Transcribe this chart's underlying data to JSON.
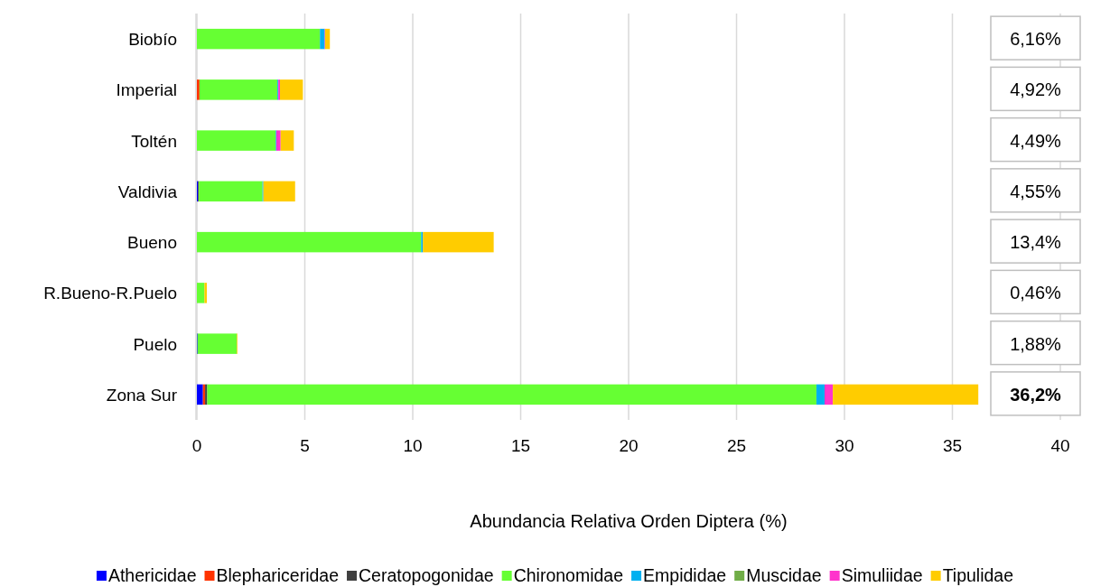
{
  "chart_data": {
    "type": "bar",
    "orientation": "horizontal",
    "stacked": true,
    "categories": [
      "Biobío",
      "Imperial",
      "Toltén",
      "Valdivia",
      "Bueno",
      "R.Bueno-R.Puelo",
      "Puelo",
      "Zona Sur"
    ],
    "series": [
      {
        "name": "Athericidae",
        "color": "#0000ff",
        "values": [
          0,
          0,
          0,
          0.05,
          0,
          0,
          0.03,
          0.28
        ]
      },
      {
        "name": "Blephariceridae",
        "color": "#ff3300",
        "values": [
          0,
          0.12,
          0,
          0,
          0,
          0,
          0,
          0.1
        ]
      },
      {
        "name": "Ceratopogonidae",
        "color": "#404040",
        "values": [
          0,
          0,
          0,
          0.04,
          0,
          0,
          0,
          0.1
        ]
      },
      {
        "name": "Chironomidae",
        "color": "#66ff33",
        "values": [
          5.7,
          3.61,
          3.65,
          2.95,
          10.39,
          0.35,
          1.82,
          28.22
        ]
      },
      {
        "name": "Empididae",
        "color": "#00b0f0",
        "values": [
          0.22,
          0.04,
          0.03,
          0.04,
          0.08,
          0,
          0,
          0.38
        ]
      },
      {
        "name": "Muscidae",
        "color": "#70ad47",
        "values": [
          0,
          0,
          0,
          0,
          0,
          0,
          0,
          0
        ]
      },
      {
        "name": "Simuliidae",
        "color": "#ff33cc",
        "values": [
          0.02,
          0.08,
          0.2,
          0,
          0,
          0,
          0,
          0.38
        ]
      },
      {
        "name": "Tipulidae",
        "color": "#ffcc00",
        "values": [
          0.22,
          1.06,
          0.61,
          1.47,
          3.28,
          0.11,
          0.03,
          6.74
        ]
      }
    ],
    "annotations": [
      "6,16%",
      "4,92%",
      "4,49%",
      "4,55%",
      "13,4%",
      "0,46%",
      "1,88%",
      "36,2%"
    ],
    "xlim": [
      0,
      40
    ],
    "xticks": [
      0,
      5,
      10,
      15,
      20,
      25,
      30,
      35,
      40
    ],
    "xlabel": "Abundancia Relativa Orden Diptera (%)",
    "grid": "x",
    "legend": "bottom"
  }
}
